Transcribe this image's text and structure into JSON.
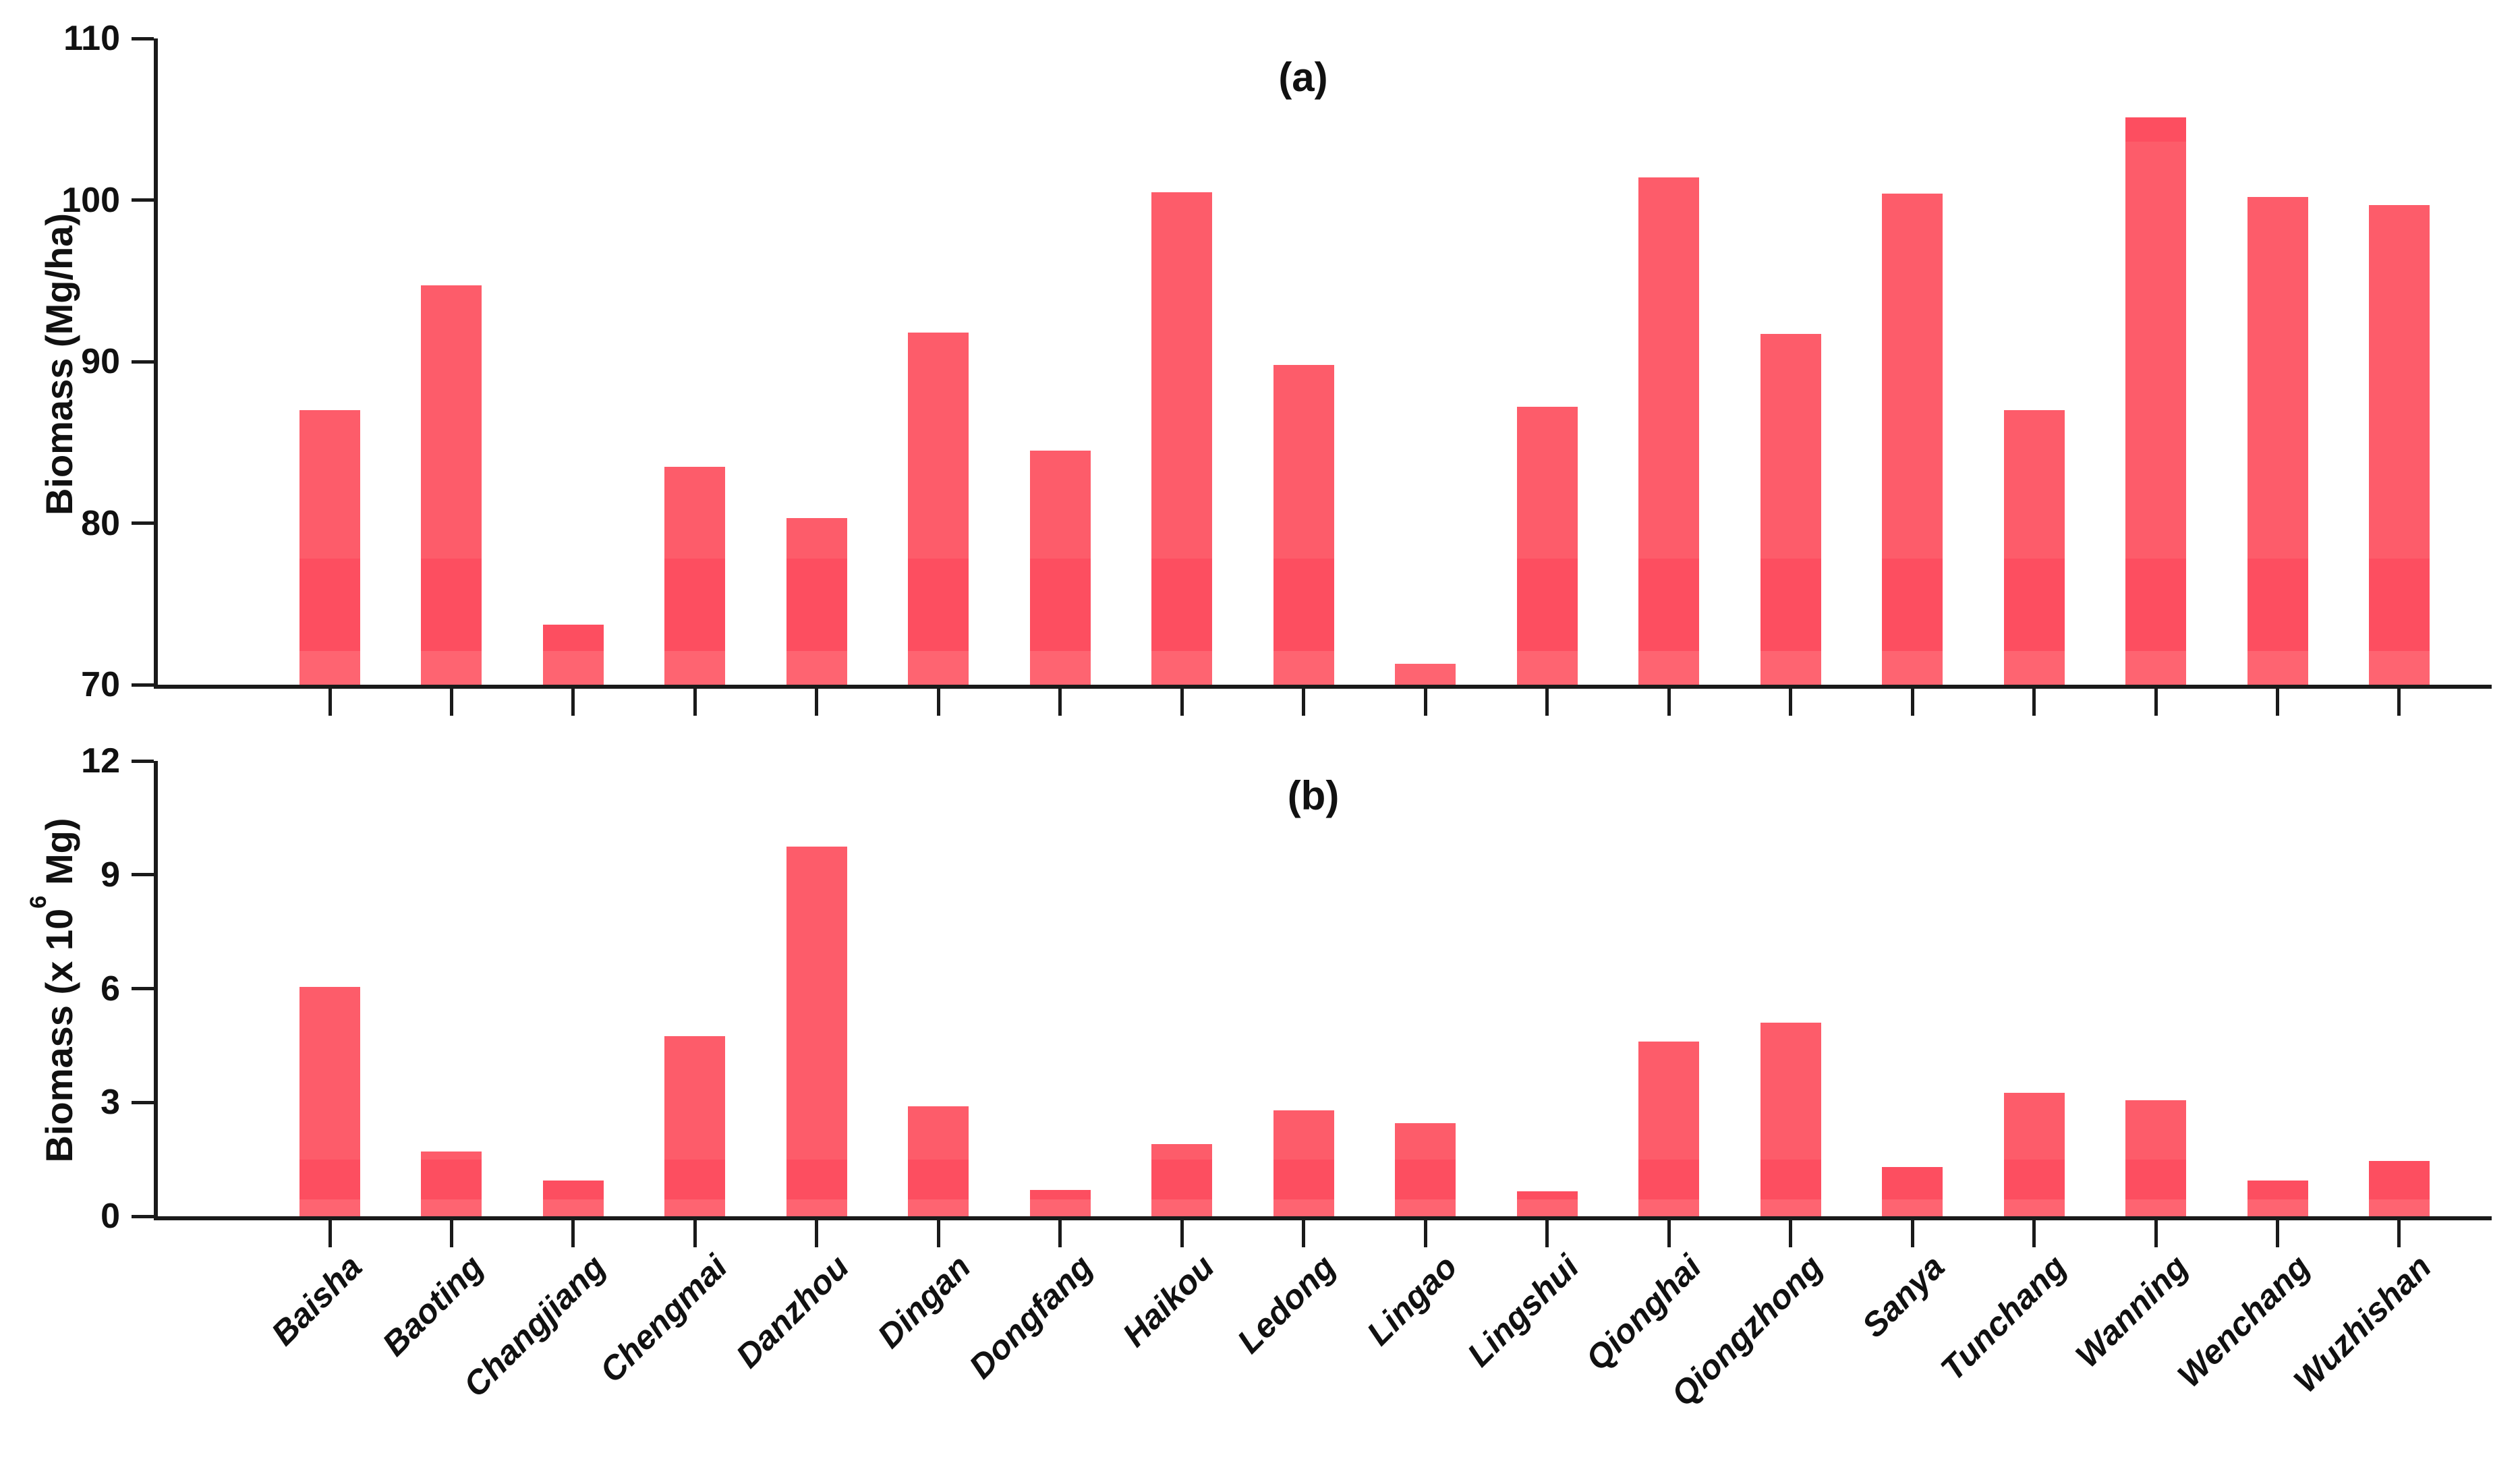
{
  "colors": {
    "bar_main": "#FD5C6A",
    "bar_band_dark": "#FD4E60",
    "bar_band_light": "#FE6471",
    "axis": "#1A1A1A",
    "text": "#111111",
    "background": "#FFFFFF"
  },
  "categories": [
    "Baisha",
    "Baoting",
    "Changjiang",
    "Chengmai",
    "Danzhou",
    "Dingan",
    "Dongfang",
    "Haikou",
    "Ledong",
    "Lingao",
    "Lingshui",
    "Qionghai",
    "Qiongzhong",
    "Sanya",
    "Tunchang",
    "Wanning",
    "Wenchang",
    "Wuzhishan"
  ],
  "chart_data": [
    {
      "type": "bar",
      "panel_label": "(a)",
      "ylabel": "Biomass (Mg/ha)",
      "ylabel_parts": {
        "pre": "Biomass (Mg/ha)",
        "sup": "",
        "post": ""
      },
      "ylim": [
        70,
        110
      ],
      "yticks": [
        70,
        80,
        90,
        100,
        110
      ],
      "grid": false,
      "legend": "none",
      "categories": [
        "Baisha",
        "Baoting",
        "Changjiang",
        "Chengmai",
        "Danzhou",
        "Dingan",
        "Dongfang",
        "Haikou",
        "Ledong",
        "Lingao",
        "Lingshui",
        "Qionghai",
        "Qiongzhong",
        "Sanya",
        "Tunchang",
        "Wanning",
        "Wenchang",
        "Wuzhishan"
      ],
      "values": [
        87.0,
        94.7,
        73.7,
        83.5,
        80.3,
        91.8,
        84.5,
        100.5,
        89.8,
        71.3,
        87.2,
        101.4,
        91.7,
        100.4,
        87.0,
        105.1,
        100.2,
        99.7
      ],
      "shade_bands": [
        {
          "from": 70,
          "to": 72.1,
          "color": "bar_band_light"
        },
        {
          "from": 72.1,
          "to": 77.8,
          "color": "bar_band_dark"
        }
      ],
      "overlay_segments": [
        {
          "category": "Wanning",
          "from": 103.6,
          "to": 105.1,
          "color": "bar_band_dark"
        }
      ]
    },
    {
      "type": "bar",
      "panel_label": "(b)",
      "ylabel": "Biomass (x 10⁶ Mg)",
      "ylabel_parts": {
        "pre": "Biomass (x 10",
        "sup": "6",
        "post": " Mg)"
      },
      "ylim": [
        0,
        12
      ],
      "yticks": [
        0,
        3,
        6,
        9,
        12
      ],
      "grid": false,
      "legend": "none",
      "categories": [
        "Baisha",
        "Baoting",
        "Changjiang",
        "Chengmai",
        "Danzhou",
        "Dingan",
        "Dongfang",
        "Haikou",
        "Ledong",
        "Lingao",
        "Lingshui",
        "Qionghai",
        "Qiongzhong",
        "Sanya",
        "Tunchang",
        "Wanning",
        "Wenchang",
        "Wuzhishan"
      ],
      "values": [
        6.05,
        1.7,
        0.95,
        4.75,
        9.75,
        2.9,
        0.7,
        1.9,
        2.8,
        2.45,
        0.65,
        4.6,
        5.1,
        1.3,
        3.25,
        3.05,
        0.95,
        1.45
      ],
      "shade_bands": [
        {
          "from": 0,
          "to": 0.45,
          "color": "bar_band_light"
        },
        {
          "from": 0.45,
          "to": 1.5,
          "color": "bar_band_dark"
        }
      ],
      "overlay_segments": []
    }
  ]
}
